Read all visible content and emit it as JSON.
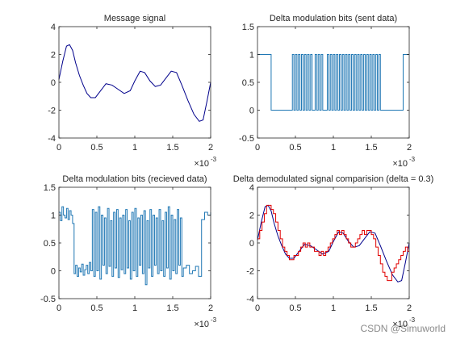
{
  "watermark": "CSDN @Simuworld",
  "chart_data": [
    {
      "type": "line",
      "title": "Message signal",
      "xlabel": "",
      "ylabel": "",
      "xlim": [
        0,
        0.002
      ],
      "ylim": [
        -4,
        4
      ],
      "xticks": [
        "0",
        "0.5",
        "1",
        "1.5",
        "2"
      ],
      "yticks": [
        "-4",
        "-2",
        "0",
        "2",
        "4"
      ],
      "x_exponent": "×10",
      "x_exponent_power": "-3",
      "series": [
        {
          "color": "#00008b",
          "x": [
            0,
            5e-05,
            0.0001,
            0.00014,
            0.00018,
            0.00022,
            0.00027,
            0.00032,
            0.00037,
            0.00042,
            0.00048,
            0.00055,
            0.00062,
            0.0007,
            0.00078,
            0.00086,
            0.00094,
            0.001,
            0.00107,
            0.00113,
            0.0012,
            0.00127,
            0.00134,
            0.00141,
            0.00148,
            0.00155,
            0.00162,
            0.0017,
            0.00178,
            0.00185,
            0.0019,
            0.00195,
            0.002
          ],
          "y": [
            0.2,
            1.5,
            2.6,
            2.7,
            2.3,
            1.4,
            0.5,
            -0.2,
            -0.8,
            -1.1,
            -1.1,
            -0.6,
            -0.1,
            -0.2,
            -0.5,
            -0.8,
            -0.6,
            0.1,
            0.8,
            0.7,
            0.1,
            -0.3,
            -0.2,
            0.3,
            0.8,
            0.7,
            -0.2,
            -1.3,
            -2.3,
            -2.8,
            -2.7,
            -1.4,
            0.0
          ]
        }
      ]
    },
    {
      "type": "line",
      "title": "Delta modulation bits (sent data)",
      "xlabel": "",
      "ylabel": "",
      "xlim": [
        0,
        0.002
      ],
      "ylim": [
        -0.5,
        1.5
      ],
      "xticks": [
        "0",
        "0.5",
        "1",
        "1.5",
        "2"
      ],
      "yticks": [
        "-0.5",
        "0",
        "0.5",
        "1",
        "1.5"
      ],
      "x_exponent": "×10",
      "x_exponent_power": "-3",
      "series": [
        {
          "color": "#1f77b4",
          "step": true,
          "x": [
            0,
            0.00018,
            0.00046,
            0.00048,
            0.0005,
            0.00052,
            0.00054,
            0.00056,
            0.00058,
            0.0006,
            0.00062,
            0.00064,
            0.00066,
            0.00068,
            0.0007,
            0.00072,
            0.00076,
            0.00078,
            0.0008,
            0.00082,
            0.00084,
            0.00086,
            0.00092,
            0.00094,
            0.00096,
            0.00098,
            0.001,
            0.00102,
            0.00104,
            0.00106,
            0.00108,
            0.0011,
            0.00112,
            0.00114,
            0.00116,
            0.00118,
            0.0012,
            0.00122,
            0.00124,
            0.00126,
            0.00128,
            0.0013,
            0.00132,
            0.00134,
            0.00136,
            0.00138,
            0.0014,
            0.00142,
            0.00144,
            0.00146,
            0.00148,
            0.0015,
            0.00152,
            0.00154,
            0.00156,
            0.00158,
            0.0016,
            0.00162,
            0.00164,
            0.00192,
            0.002
          ],
          "y": [
            1,
            0,
            1,
            0,
            1,
            0,
            1,
            0,
            1,
            0,
            1,
            0,
            1,
            0,
            1,
            0,
            1,
            0,
            1,
            0,
            1,
            0,
            1,
            0,
            1,
            0,
            1,
            0,
            1,
            0,
            1,
            0,
            1,
            0,
            1,
            0,
            1,
            0,
            1,
            0,
            1,
            0,
            1,
            0,
            1,
            0,
            1,
            0,
            1,
            0,
            1,
            0,
            1,
            0,
            1,
            0,
            1,
            0,
            0,
            1,
            1
          ]
        }
      ]
    },
    {
      "type": "line",
      "title": "Delta modulation bits (recieved data)",
      "xlabel": "",
      "ylabel": "",
      "xlim": [
        0,
        0.002
      ],
      "ylim": [
        -0.5,
        1.5
      ],
      "xticks": [
        "0",
        "0.5",
        "1",
        "1.5",
        "2"
      ],
      "yticks": [
        "-0.5",
        "0",
        "0.5",
        "1",
        "1.5"
      ],
      "x_exponent": "×10",
      "x_exponent_power": "-3",
      "series": [
        {
          "color": "#1f77b4",
          "step": true,
          "x": [
            0,
            2e-05,
            4e-05,
            6e-05,
            8e-05,
            0.0001,
            0.00012,
            0.00014,
            0.00016,
            0.00018,
            0.0002,
            0.00022,
            0.00024,
            0.00026,
            0.00028,
            0.0003,
            0.00032,
            0.00034,
            0.00036,
            0.00038,
            0.0004,
            0.00042,
            0.00044,
            0.00046,
            0.00048,
            0.0005,
            0.00052,
            0.00054,
            0.00056,
            0.00058,
            0.0006,
            0.00062,
            0.00064,
            0.00066,
            0.00068,
            0.0007,
            0.00072,
            0.00074,
            0.00076,
            0.00078,
            0.0008,
            0.00082,
            0.00084,
            0.00086,
            0.00088,
            0.0009,
            0.00092,
            0.00094,
            0.00096,
            0.00098,
            0.001,
            0.00102,
            0.00104,
            0.00106,
            0.00108,
            0.0011,
            0.00112,
            0.00114,
            0.00116,
            0.00118,
            0.0012,
            0.00122,
            0.00124,
            0.00126,
            0.00128,
            0.0013,
            0.00132,
            0.00134,
            0.00136,
            0.00138,
            0.0014,
            0.00142,
            0.00144,
            0.00146,
            0.00148,
            0.0015,
            0.00152,
            0.00154,
            0.00156,
            0.00158,
            0.0016,
            0.00162,
            0.00164,
            0.00168,
            0.00172,
            0.00176,
            0.0018,
            0.00184,
            0.00188,
            0.00192,
            0.00196,
            0.002
          ],
          "y": [
            1.05,
            0.9,
            1.15,
            1.0,
            0.95,
            1.12,
            0.92,
            1.08,
            1.0,
            0.85,
            -0.05,
            0.1,
            -0.1,
            0.05,
            -0.02,
            0.12,
            -0.08,
            0.02,
            0.1,
            -0.05,
            0.15,
            0.0,
            1.1,
            -0.1,
            1.05,
            0.0,
            1.15,
            -0.15,
            1.0,
            0.1,
            0.95,
            -0.05,
            1.12,
            0.08,
            0.9,
            -0.1,
            1.05,
            0.05,
            1.1,
            -0.12,
            0.95,
            0.02,
            1.0,
            -0.05,
            1.1,
            0.05,
            0.9,
            -0.15,
            1.05,
            0.0,
            1.12,
            -0.1,
            0.95,
            0.1,
            1.0,
            -0.05,
            1.08,
            -0.25,
            0.9,
            0.05,
            1.1,
            -0.1,
            1.0,
            0.1,
            0.95,
            -0.05,
            1.1,
            0.0,
            0.9,
            -0.1,
            1.05,
            0.05,
            1.15,
            -0.15,
            1.0,
            0.0,
            0.92,
            -0.05,
            1.1,
            0.1,
            0.95,
            -0.1,
            0.05,
            0.1,
            -0.05,
            0.0,
            0.08,
            -0.1,
            0.92,
            1.05,
            1.0,
            1.05
          ]
        }
      ]
    },
    {
      "type": "line",
      "title": "Delta demodulated signal comparision (delta = 0.3)",
      "xlabel": "",
      "ylabel": "",
      "xlim": [
        0,
        0.002
      ],
      "ylim": [
        -4,
        4
      ],
      "xticks": [
        "0",
        "0.5",
        "1",
        "1.5",
        "2"
      ],
      "yticks": [
        "-4",
        "-2",
        "0",
        "2",
        "4"
      ],
      "x_exponent": "×10",
      "x_exponent_power": "-3",
      "series": [
        {
          "color": "#00008b",
          "x": [
            0,
            5e-05,
            0.0001,
            0.00014,
            0.00018,
            0.00022,
            0.00027,
            0.00032,
            0.00037,
            0.00042,
            0.00048,
            0.00055,
            0.00062,
            0.0007,
            0.00078,
            0.00086,
            0.00094,
            0.001,
            0.00107,
            0.00113,
            0.0012,
            0.00127,
            0.00134,
            0.00141,
            0.00148,
            0.00155,
            0.00162,
            0.0017,
            0.00178,
            0.00185,
            0.0019,
            0.00195,
            0.002
          ],
          "y": [
            0.2,
            1.5,
            2.6,
            2.7,
            2.3,
            1.4,
            0.5,
            -0.2,
            -0.8,
            -1.1,
            -1.1,
            -0.6,
            -0.1,
            -0.2,
            -0.5,
            -0.8,
            -0.6,
            0.1,
            0.8,
            0.7,
            0.1,
            -0.3,
            -0.2,
            0.3,
            0.8,
            0.7,
            -0.2,
            -1.3,
            -2.3,
            -2.8,
            -2.7,
            -1.4,
            0.0
          ]
        },
        {
          "color": "#e00000",
          "step": true,
          "x": [
            0,
            3e-05,
            6e-05,
            9e-05,
            0.00012,
            0.00015,
            0.00018,
            0.00021,
            0.00024,
            0.00027,
            0.0003,
            0.00033,
            0.00036,
            0.00039,
            0.00042,
            0.00045,
            0.00048,
            0.00051,
            0.00054,
            0.00057,
            0.0006,
            0.00063,
            0.00066,
            0.00069,
            0.00072,
            0.00075,
            0.00078,
            0.00081,
            0.00084,
            0.00087,
            0.0009,
            0.00093,
            0.00096,
            0.00099,
            0.00102,
            0.00105,
            0.00108,
            0.00111,
            0.00114,
            0.00117,
            0.0012,
            0.00123,
            0.00126,
            0.00129,
            0.00132,
            0.00135,
            0.00138,
            0.00141,
            0.00144,
            0.00147,
            0.0015,
            0.00153,
            0.00156,
            0.00159,
            0.00162,
            0.00165,
            0.00168,
            0.00171,
            0.00174,
            0.00177,
            0.0018,
            0.00183,
            0.00186,
            0.00189,
            0.00192,
            0.00195,
            0.00198
          ],
          "y": [
            0.3,
            0.9,
            1.5,
            2.1,
            2.7,
            2.7,
            2.4,
            2.1,
            1.5,
            0.9,
            0.3,
            -0.3,
            -0.6,
            -0.9,
            -1.2,
            -1.2,
            -0.9,
            -0.9,
            -0.6,
            -0.3,
            0.0,
            -0.3,
            0.0,
            -0.3,
            -0.3,
            -0.6,
            -0.6,
            -0.9,
            -0.6,
            -0.9,
            -0.6,
            -0.3,
            0.0,
            0.3,
            0.6,
            0.9,
            0.6,
            0.9,
            0.6,
            0.3,
            0.0,
            -0.3,
            -0.3,
            0.0,
            0.3,
            0.6,
            0.9,
            0.6,
            0.9,
            0.9,
            0.6,
            0.3,
            -0.3,
            -0.9,
            -1.5,
            -2.1,
            -2.4,
            -2.7,
            -2.7,
            -2.1,
            -1.8,
            -1.5,
            -1.2,
            -0.9,
            -0.6,
            -0.3,
            -0.6
          ]
        }
      ]
    }
  ]
}
